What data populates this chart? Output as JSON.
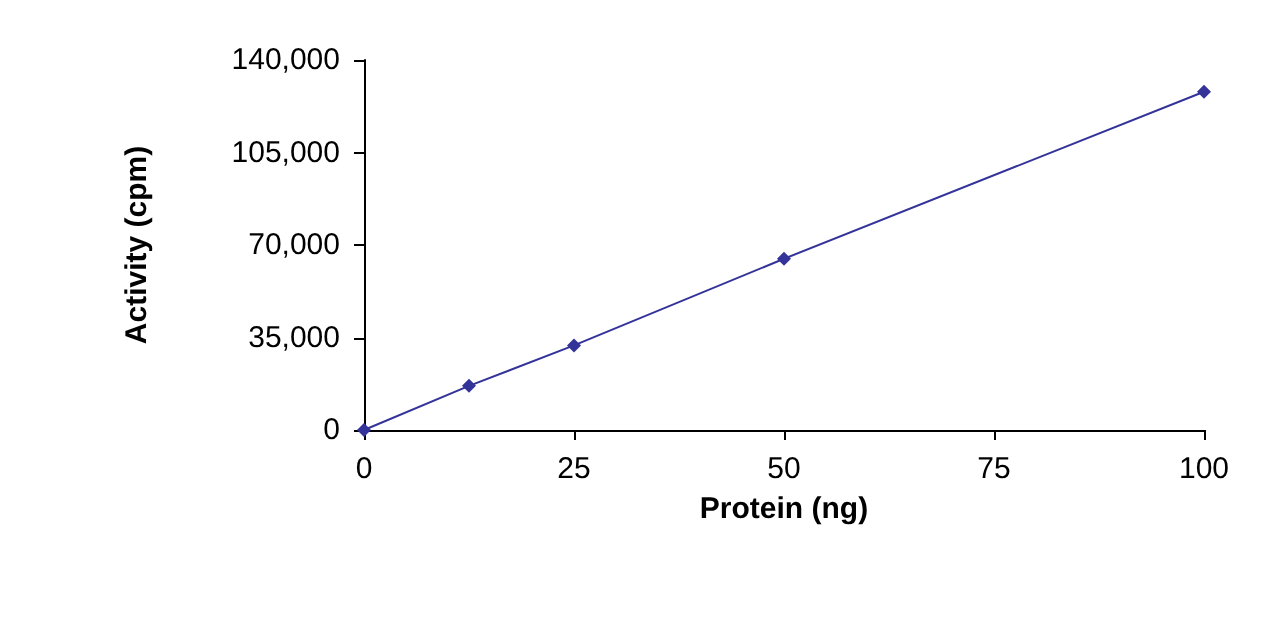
{
  "chart_data": {
    "type": "line",
    "xlabel": "Protein (ng)",
    "ylabel": "Activity (cpm)",
    "x": [
      0,
      12.5,
      25,
      50,
      100
    ],
    "series": [
      {
        "color": "#333399",
        "values": [
          0,
          16700,
          32000,
          64800,
          128000
        ]
      }
    ],
    "xlim": [
      0,
      100
    ],
    "xticks": [
      0,
      25,
      50,
      75,
      100
    ],
    "ylim": [
      0,
      140000
    ],
    "yticks": [
      {
        "value": 0,
        "label": "0"
      },
      {
        "value": 35000,
        "label": "35,000"
      },
      {
        "value": 70000,
        "label": "70,000"
      },
      {
        "value": 105000,
        "label": "105,000"
      },
      {
        "value": 140000,
        "label": "140,000"
      }
    ],
    "grid": false,
    "marker": "diamond",
    "line_style": "solid"
  }
}
